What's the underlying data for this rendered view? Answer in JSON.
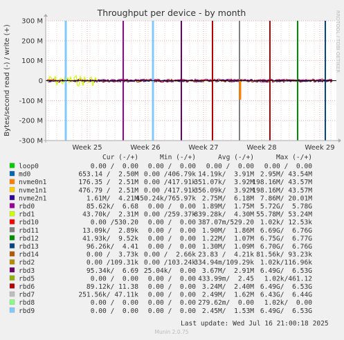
{
  "chart_data": {
    "type": "line",
    "title": "Throughput per device - by month",
    "ylabel": "Bytes/second read (-) / write (+)",
    "side_label": "RRDTOOL / TOBI OETIKER",
    "ylim": [
      -300000000,
      300000000
    ],
    "y_ticks": [
      "300 M",
      "200 M",
      "100 M",
      "0",
      "-100 M",
      "-200 M",
      "-300 M"
    ],
    "y_tick_values": [
      300000000,
      200000000,
      100000000,
      0,
      -100000000,
      -200000000,
      -300000000
    ],
    "x_ticks": [
      "Week 25",
      "Week 26",
      "Week 27",
      "Week 28",
      "Week 29"
    ],
    "columns": [
      "Cur (-/+)",
      "Min (-/+)",
      "Avg (-/+)",
      "Max (-/+)"
    ],
    "series": [
      {
        "name": "loop0",
        "color": "#00cc00",
        "cur": "0.00 /  0.00",
        "min": "0.00 /  0.00",
        "avg": "0.00 /  0.00",
        "max": "0.00 /  0.00",
        "spikes": []
      },
      {
        "name": "md0",
        "color": "#0066b3",
        "cur": "653.14 /  2.50M",
        "min": "0.00 /406.79k",
        "avg": "14.19k/  3.91M",
        "max": "2.95M/ 43.54M",
        "spikes": []
      },
      {
        "name": "nvme0n1",
        "color": "#ff8000",
        "cur": "176.35 /  2.51M",
        "min": "0.00 /417.91k",
        "avg": "351.07k/  3.92M",
        "max": "198.16M/ 43.57M",
        "spikes": []
      },
      {
        "name": "nvme1n1",
        "color": "#ffcc00",
        "cur": "476.79 /  2.51M",
        "min": "0.00 /417.91k",
        "avg": "356.09k/  3.92M",
        "max": "198.16M/ 43.57M",
        "spikes": []
      },
      {
        "name": "nvme2n1",
        "color": "#330099",
        "cur": "1.61M/  4.21M",
        "min": "450.24k/765.97k",
        "avg": "2.75M/  6.18M",
        "max": "7.86M/ 20.01M",
        "spikes": []
      },
      {
        "name": "rbd0",
        "color": "#990099",
        "cur": "85.62k/  6.68",
        "min": "0.00 /  0.00",
        "avg": "1.89M/  1.75M",
        "max": "5.72G/  5.78G",
        "spikes": [
          {
            "x": "Week 26",
            "frac": -0.33
          }
        ]
      },
      {
        "name": "rbd1",
        "color": "#ccff00",
        "cur": "43.70k/  2.31M",
        "min": "0.00 /259.37k",
        "avg": "839.28k/  4.30M",
        "max": "55.78M/ 53.24M",
        "spikes": []
      },
      {
        "name": "rbd10",
        "color": "#ff0000",
        "cur": "0.00 /530.20",
        "min": "0.00 /  0.00",
        "avg": "387.07m/529.20",
        "max": "1.02k/ 12.53k",
        "spikes": []
      },
      {
        "name": "rbd11",
        "color": "#808080",
        "cur": "13.09k/  2.89k",
        "min": "0.00 /  0.00",
        "avg": "1.90M/  1.86M",
        "max": "6.69G/  6.76G",
        "spikes": [
          {
            "x": "Week 28",
            "frac": -0.55
          }
        ]
      },
      {
        "name": "rbd12",
        "color": "#008f00",
        "cur": "41.93k/  9.52k",
        "min": "0.00 /  0.00",
        "avg": "1.22M/  1.07M",
        "max": "6.75G/  6.77G",
        "spikes": [
          {
            "x": "Week 28",
            "frac": 0.55
          }
        ]
      },
      {
        "name": "rbd13",
        "color": "#00487d",
        "cur": "96.26k/  4.41",
        "min": "0.00 /  0.00",
        "avg": "1.30M/  1.09M",
        "max": "6.70G/  6.76G",
        "spikes": [
          {
            "x": "Week 29",
            "frac": -0.62
          }
        ]
      },
      {
        "name": "rbd14",
        "color": "#b35a00",
        "cur": "0.00 /  3.73k",
        "min": "0.00 /  2.66k",
        "avg": "23.83 /  4.21k",
        "max": "81.56k/ 93.23k",
        "spikes": []
      },
      {
        "name": "rbd2",
        "color": "#b38f00",
        "cur": "0.00 /109.31k",
        "min": "0.00 /103.24k",
        "avg": "334.94m/109.29k",
        "max": "1.02k/116.96k",
        "spikes": []
      },
      {
        "name": "rbd3",
        "color": "#6b006b",
        "cur": "95.34k/  6.69",
        "min": "25.04k/  0.00",
        "avg": "3.67M/  2.91M",
        "max": "6.49G/  6.53G",
        "spikes": [
          {
            "x": "Week 27",
            "frac": 0.45
          }
        ]
      },
      {
        "name": "rbd5",
        "color": "#8fb300",
        "cur": "0.00 /  0.00",
        "min": "0.00 /  0.00",
        "avg": "433.99m/  2.45",
        "max": "1.02k/461.12",
        "spikes": []
      },
      {
        "name": "rbd6",
        "color": "#b30000",
        "cur": "89.12k/ 11.38",
        "min": "0.00 /  0.00",
        "avg": "3.24M/  2.40M",
        "max": "6.49G/  6.53G",
        "spikes": [
          {
            "x": "Week 27",
            "frac": 0.0
          },
          {
            "x": "Week 28",
            "frac": 0.8
          }
        ]
      },
      {
        "name": "rbd7",
        "color": "#bebebe",
        "cur": "251.56k/ 47.11k",
        "min": "0.00 /  0.00",
        "avg": "2.49M/  1.62M",
        "max": "6.43G/  6.44G",
        "spikes": []
      },
      {
        "name": "rbd8",
        "color": "#80ff80",
        "cur": "0.00 /  0.00",
        "min": "0.00 /  0.00",
        "avg": "279.62m/  0.00",
        "max": "1.02k/  0.00",
        "spikes": []
      },
      {
        "name": "rbd9",
        "color": "#80c9ff",
        "cur": "0.00 /  0.00",
        "min": "0.00 /  0.00",
        "avg": "2.45M/  1.53M",
        "max": "6.49G/  6.53G",
        "spikes": [
          {
            "x": "Week 25",
            "frac": -0.6
          },
          {
            "x": "Week 26",
            "frac": 0.35
          }
        ]
      }
    ],
    "grid": true
  },
  "footer": {
    "last_update": "Last update: Wed Jul 16 21:00:18 2025",
    "version": "Munin 2.0.75"
  }
}
